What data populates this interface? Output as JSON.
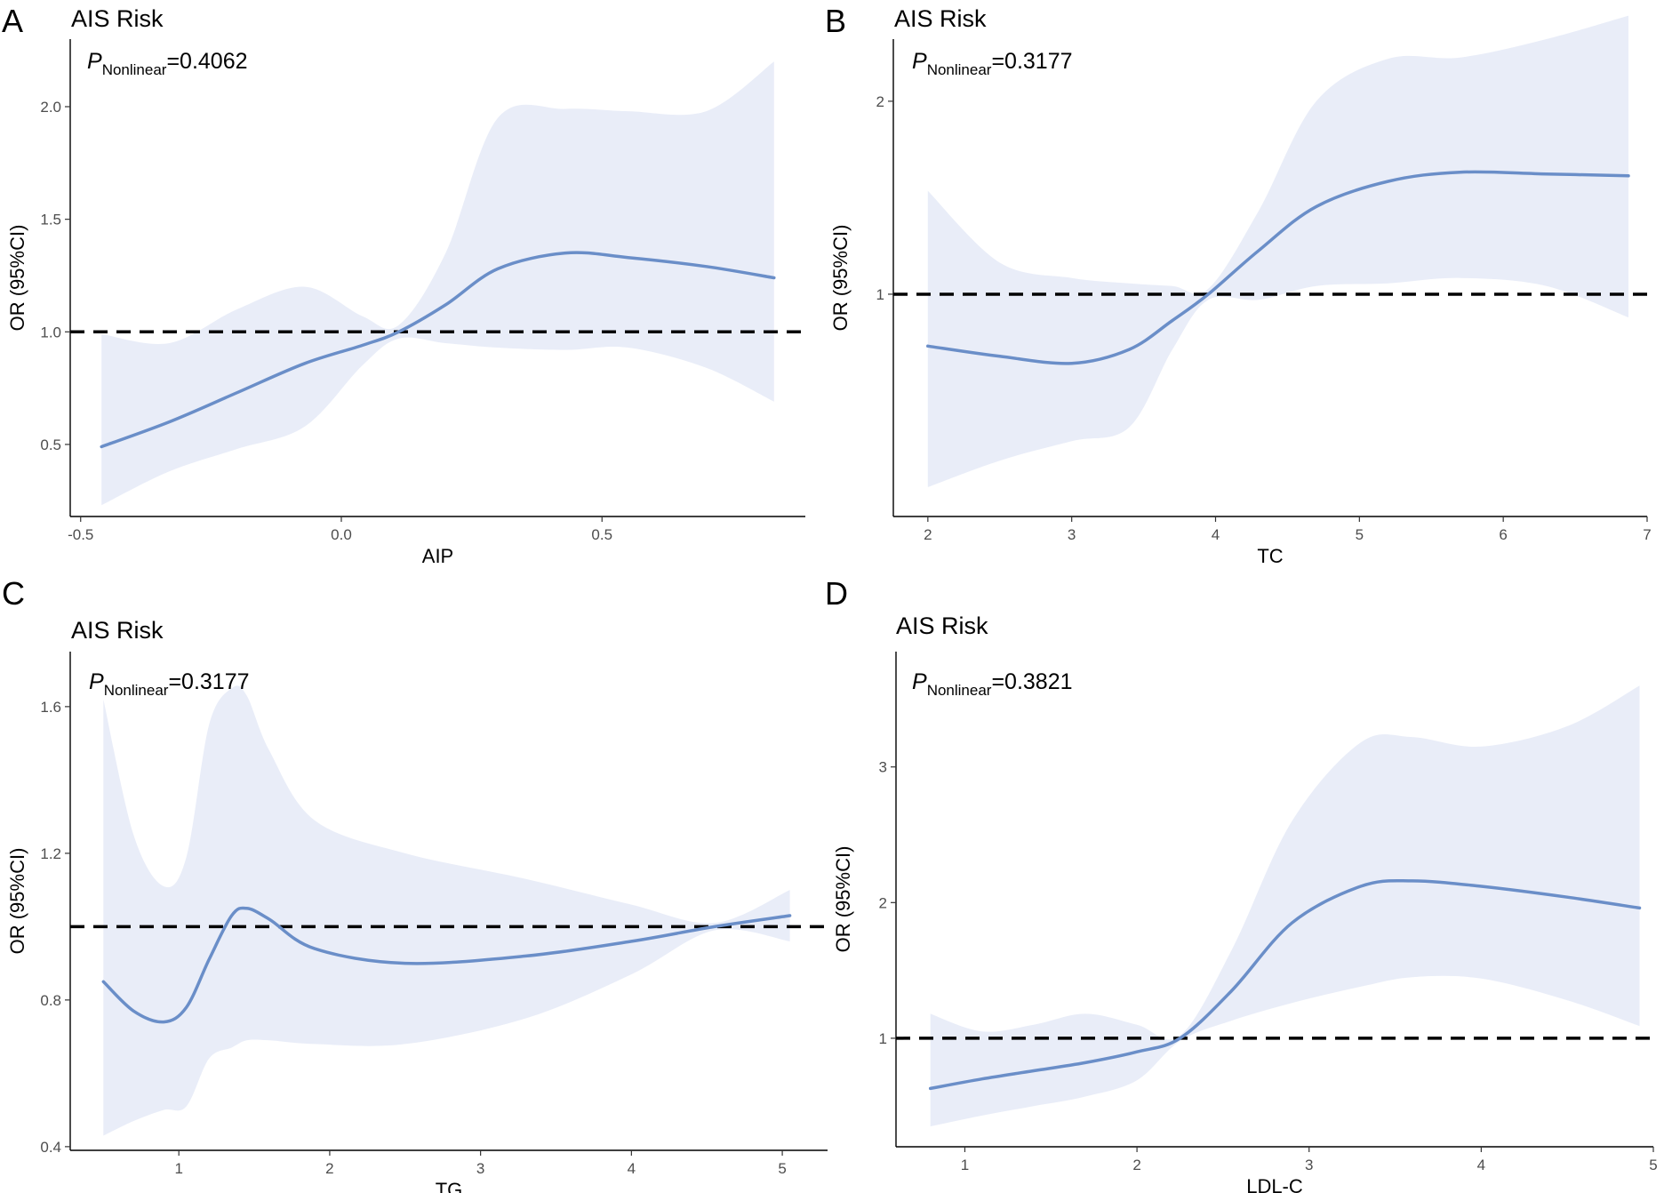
{
  "figure": {
    "accent_color": "#6a8ec8",
    "band_color": "#e9edf8",
    "reference_line": 1
  },
  "chart_data": [
    {
      "panel": "A",
      "type": "line",
      "title": "AIS Risk",
      "annotation": {
        "p": "P",
        "sub": "Nonlinear",
        "value": "=0.4062"
      },
      "xlabel": "AIP",
      "ylabel": "OR (95%CI)",
      "xlim": [
        -0.52,
        0.89
      ],
      "ylim": [
        0.18,
        2.3
      ],
      "xticks": [
        -0.5,
        0.0,
        0.5
      ],
      "xtick_labels": [
        "-0.5",
        "0.0",
        "0.5"
      ],
      "yticks": [
        0.5,
        1.0,
        1.5,
        2.0
      ],
      "ytick_labels": [
        "0.5",
        "1.0",
        "1.5",
        "2.0"
      ],
      "x": [
        -0.46,
        -0.33,
        -0.2,
        -0.07,
        0.04,
        0.11,
        0.2,
        0.3,
        0.43,
        0.55,
        0.7,
        0.83
      ],
      "y": [
        0.49,
        0.6,
        0.73,
        0.86,
        0.94,
        1.0,
        1.12,
        1.28,
        1.35,
        1.33,
        1.29,
        1.24
      ],
      "lower": [
        0.23,
        0.38,
        0.48,
        0.58,
        0.85,
        0.97,
        0.95,
        0.93,
        0.92,
        0.93,
        0.84,
        0.69
      ],
      "upper": [
        0.99,
        0.95,
        1.1,
        1.2,
        1.07,
        1.03,
        1.35,
        1.95,
        1.99,
        1.98,
        1.98,
        2.2
      ]
    },
    {
      "panel": "B",
      "type": "line",
      "title": "AIS Risk",
      "annotation": {
        "p": "P",
        "sub": "Nonlinear",
        "value": "=0.3177"
      },
      "xlabel": "TC",
      "ylabel": "OR (95%CI)",
      "xlim": [
        1.76,
        7.0
      ],
      "ylim": [
        0.45,
        2.5
      ],
      "yscale": "log",
      "xticks": [
        2,
        3,
        4,
        5,
        6,
        7
      ],
      "xtick_labels": [
        "2",
        "3",
        "4",
        "5",
        "6",
        "7"
      ],
      "yticks": [
        1,
        2
      ],
      "ytick_labels": [
        "1",
        "2"
      ],
      "x": [
        2.0,
        2.5,
        3.0,
        3.4,
        3.7,
        3.95,
        4.3,
        4.7,
        5.2,
        5.7,
        6.3,
        6.87
      ],
      "y": [
        0.83,
        0.8,
        0.78,
        0.82,
        0.91,
        1.0,
        1.17,
        1.37,
        1.5,
        1.55,
        1.54,
        1.53
      ],
      "lower": [
        0.5,
        0.55,
        0.59,
        0.62,
        0.82,
        0.98,
        0.98,
        1.03,
        1.04,
        1.06,
        1.03,
        0.92
      ],
      "upper": [
        1.45,
        1.12,
        1.06,
        1.04,
        1.03,
        1.02,
        1.35,
        2.0,
        2.33,
        2.34,
        2.5,
        2.72
      ]
    },
    {
      "panel": "C",
      "type": "line",
      "title": "AIS Risk",
      "annotation": {
        "p": "P",
        "sub": "Nonlinear",
        "value": "=0.3177"
      },
      "xlabel": "TG",
      "ylabel": "OR (95%CI)",
      "xlim": [
        0.28,
        5.3
      ],
      "ylim": [
        0.39,
        1.75
      ],
      "xticks": [
        1,
        2,
        3,
        4,
        5
      ],
      "xtick_labels": [
        "1",
        "2",
        "3",
        "4",
        "5"
      ],
      "yticks": [
        0.4,
        0.8,
        1.2,
        1.6
      ],
      "ytick_labels": [
        "0.4",
        "0.8",
        "1.2",
        "1.6"
      ],
      "x": [
        0.5,
        0.7,
        0.9,
        1.05,
        1.2,
        1.35,
        1.45,
        1.6,
        1.9,
        2.5,
        3.3,
        4.0,
        4.55,
        5.05
      ],
      "y": [
        0.85,
        0.77,
        0.74,
        0.78,
        0.91,
        1.03,
        1.05,
        1.02,
        0.94,
        0.9,
        0.92,
        0.96,
        1.0,
        1.03
      ],
      "lower": [
        0.43,
        0.47,
        0.5,
        0.51,
        0.64,
        0.67,
        0.69,
        0.69,
        0.68,
        0.68,
        0.75,
        0.87,
        0.99,
        0.96
      ],
      "upper": [
        1.62,
        1.25,
        1.11,
        1.19,
        1.55,
        1.65,
        1.63,
        1.48,
        1.29,
        1.2,
        1.13,
        1.06,
        1.01,
        1.1
      ]
    },
    {
      "panel": "D",
      "type": "line",
      "title": "AIS Risk",
      "annotation": {
        "p": "P",
        "sub": "Nonlinear",
        "value": "=0.3821"
      },
      "xlabel": "LDL-C",
      "ylabel": "OR (95%CI)",
      "xlim": [
        0.6,
        5.0
      ],
      "ylim": [
        0.2,
        3.85
      ],
      "xticks": [
        1,
        2,
        3,
        4,
        5
      ],
      "xtick_labels": [
        "1",
        "2",
        "3",
        "4",
        "5"
      ],
      "yticks": [
        1,
        2,
        3
      ],
      "ytick_labels": [
        "1",
        "2",
        "3"
      ],
      "x": [
        0.8,
        1.1,
        1.4,
        1.7,
        2.0,
        2.25,
        2.55,
        2.9,
        3.3,
        3.6,
        4.0,
        4.5,
        4.92
      ],
      "y": [
        0.63,
        0.7,
        0.76,
        0.82,
        0.9,
        1.0,
        1.35,
        1.85,
        2.12,
        2.16,
        2.12,
        2.04,
        1.96
      ],
      "lower": [
        0.35,
        0.43,
        0.5,
        0.57,
        0.69,
        0.98,
        1.13,
        1.26,
        1.38,
        1.45,
        1.44,
        1.28,
        1.09
      ],
      "upper": [
        1.18,
        1.05,
        1.1,
        1.18,
        1.1,
        1.02,
        1.65,
        2.6,
        3.18,
        3.22,
        3.15,
        3.3,
        3.6
      ]
    }
  ]
}
